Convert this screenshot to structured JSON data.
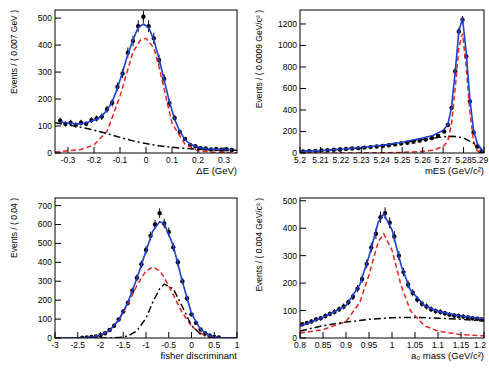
{
  "chart_data": [
    {
      "type": "scatter",
      "x_label": "ΔE (GeV)",
      "y_label": "Events / ( 0.007 GeV )",
      "xlim": [
        -0.35,
        0.35
      ],
      "xticks": [
        -0.3,
        -0.2,
        -0.1,
        0,
        0.1,
        0.2,
        0.3
      ],
      "ylim": [
        0,
        530
      ],
      "yticks": [
        0,
        100,
        200,
        300,
        400,
        500
      ],
      "grid": false,
      "series": [
        {
          "type": "scatter",
          "color": "#000000",
          "marker": "circle",
          "x": [
            -0.33,
            -0.31,
            -0.29,
            -0.27,
            -0.25,
            -0.23,
            -0.21,
            -0.19,
            -0.17,
            -0.15,
            -0.13,
            -0.11,
            -0.09,
            -0.07,
            -0.05,
            -0.03,
            -0.01,
            0.01,
            0.03,
            0.05,
            0.07,
            0.09,
            0.11,
            0.13,
            0.15,
            0.17,
            0.19,
            0.21,
            0.23,
            0.25,
            0.27,
            0.29,
            0.31,
            0.33
          ],
          "values": [
            120,
            108,
            112,
            104,
            112,
            108,
            122,
            128,
            135,
            162,
            186,
            245,
            295,
            372,
            415,
            470,
            505,
            470,
            425,
            345,
            275,
            185,
            130,
            78,
            52,
            30,
            25,
            18,
            17,
            13,
            15,
            12,
            14,
            11
          ],
          "errors": [
            11,
            10,
            11,
            10,
            11,
            10,
            11,
            11,
            12,
            13,
            14,
            16,
            17,
            19,
            20,
            22,
            22,
            22,
            21,
            19,
            17,
            14,
            11,
            9,
            7,
            5,
            5,
            4,
            4,
            4,
            4,
            3,
            4,
            3
          ]
        },
        {
          "type": "line",
          "color": "#e8251f",
          "line_style": "dashed",
          "x": [
            -0.35,
            -0.33,
            -0.25,
            -0.2,
            -0.15,
            -0.1,
            -0.05,
            -0.02,
            0,
            0.03,
            0.05,
            0.1,
            0.15,
            0.2,
            0.25,
            0.35
          ],
          "values": [
            4,
            5,
            13,
            30,
            80,
            210,
            375,
            420,
            425,
            390,
            320,
            110,
            33,
            8,
            3,
            1
          ]
        },
        {
          "type": "line",
          "color": "#000000",
          "line_style": "dashdot",
          "x": [
            -0.35,
            -0.3,
            -0.25,
            -0.2,
            -0.15,
            -0.1,
            -0.05,
            0,
            0.05,
            0.1,
            0.15,
            0.2,
            0.25,
            0.3,
            0.35
          ],
          "values": [
            112,
            104,
            95,
            85,
            72,
            58,
            45,
            35,
            27,
            21,
            17,
            14,
            12,
            11,
            10
          ]
        },
        {
          "type": "line",
          "color": "#1f3fd0",
          "line_style": "solid",
          "x": [
            -0.33,
            -0.31,
            -0.29,
            -0.27,
            -0.25,
            -0.23,
            -0.21,
            -0.19,
            -0.17,
            -0.15,
            -0.13,
            -0.11,
            -0.09,
            -0.07,
            -0.05,
            -0.03,
            -0.01,
            0.01,
            0.03,
            0.05,
            0.07,
            0.09,
            0.11,
            0.13,
            0.15,
            0.17,
            0.19,
            0.21,
            0.23,
            0.25,
            0.27,
            0.29,
            0.31,
            0.33
          ],
          "values": [
            115,
            112,
            110,
            108,
            108,
            112,
            118,
            125,
            138,
            158,
            190,
            240,
            300,
            365,
            420,
            465,
            478,
            465,
            420,
            350,
            270,
            190,
            125,
            80,
            50,
            33,
            24,
            19,
            16,
            15,
            14,
            13,
            13,
            12
          ]
        }
      ]
    },
    {
      "type": "scatter",
      "x_label": "mES (GeV/c²)",
      "y_label": "Events / ( 0.0009 GeV/c² )",
      "xlim": [
        5.2,
        5.29
      ],
      "xticks": [
        5.2,
        5.21,
        5.22,
        5.23,
        5.24,
        5.25,
        5.26,
        5.27,
        5.28,
        5.29
      ],
      "ylim": [
        0,
        1330
      ],
      "yticks": [
        0,
        200,
        400,
        600,
        800,
        1000,
        1200
      ],
      "grid": false,
      "series": [
        {
          "type": "scatter",
          "color": "#000000",
          "marker": "circle",
          "x": [
            5.2015,
            5.2045,
            5.2075,
            5.2105,
            5.2135,
            5.2165,
            5.2195,
            5.2225,
            5.2255,
            5.2285,
            5.2315,
            5.2345,
            5.2375,
            5.2405,
            5.2435,
            5.2465,
            5.2495,
            5.2525,
            5.2555,
            5.2585,
            5.2615,
            5.2645,
            5.2675,
            5.2705,
            5.2723,
            5.2741,
            5.2759,
            5.2777,
            5.2795,
            5.2813,
            5.2831,
            5.2849,
            5.2867,
            5.2885
          ],
          "values": [
            14,
            16,
            20,
            24,
            26,
            30,
            32,
            38,
            42,
            45,
            50,
            55,
            60,
            65,
            72,
            80,
            88,
            95,
            105,
            115,
            125,
            140,
            160,
            200,
            260,
            420,
            760,
            1130,
            1240,
            900,
            480,
            190,
            60,
            8
          ],
          "errors": [
            4,
            4,
            4,
            5,
            5,
            5,
            6,
            6,
            6,
            7,
            7,
            7,
            8,
            8,
            8,
            9,
            9,
            10,
            10,
            11,
            11,
            12,
            13,
            14,
            16,
            20,
            28,
            34,
            35,
            30,
            22,
            14,
            8,
            3
          ]
        },
        {
          "type": "line",
          "color": "#e8251f",
          "line_style": "dashed",
          "x": [
            5.2,
            5.21,
            5.22,
            5.23,
            5.24,
            5.25,
            5.26,
            5.265,
            5.27,
            5.2723,
            5.2741,
            5.2759,
            5.2777,
            5.2795,
            5.2813,
            5.2831,
            5.2849,
            5.2867,
            5.29
          ],
          "values": [
            0,
            0,
            0,
            1,
            2,
            5,
            15,
            25,
            60,
            110,
            270,
            600,
            980,
            1110,
            800,
            380,
            110,
            20,
            0
          ]
        },
        {
          "type": "line",
          "color": "#000000",
          "line_style": "dashdot",
          "x": [
            5.2,
            5.21,
            5.22,
            5.23,
            5.24,
            5.25,
            5.26,
            5.27,
            5.275,
            5.28,
            5.285,
            5.288,
            5.29
          ],
          "values": [
            12,
            22,
            35,
            50,
            70,
            95,
            125,
            150,
            156,
            140,
            90,
            50,
            0
          ]
        },
        {
          "type": "line",
          "color": "#1f3fd0",
          "line_style": "solid",
          "x": [
            5.2,
            5.21,
            5.22,
            5.23,
            5.24,
            5.25,
            5.26,
            5.265,
            5.27,
            5.2723,
            5.2741,
            5.2759,
            5.2777,
            5.2795,
            5.2813,
            5.2831,
            5.2849,
            5.2867,
            5.29
          ],
          "values": [
            12,
            22,
            35,
            51,
            72,
            100,
            140,
            163,
            210,
            263,
            425,
            756,
            1130,
            1255,
            935,
            500,
            210,
            90,
            0
          ]
        }
      ]
    },
    {
      "type": "scatter",
      "x_label": "fisher discriminant",
      "y_label": "Events / ( 0.04 )",
      "xlim": [
        -3,
        1
      ],
      "xticks": [
        -3,
        -2.5,
        -2,
        -1.5,
        -1,
        -0.5,
        0,
        0.5,
        1
      ],
      "ylim": [
        0,
        740
      ],
      "yticks": [
        0,
        100,
        200,
        300,
        400,
        500,
        600,
        700
      ],
      "grid": false,
      "series": [
        {
          "type": "scatter",
          "color": "#000000",
          "marker": "circle",
          "x": [
            -2.4,
            -2.3,
            -2.2,
            -2.1,
            -2.0,
            -1.9,
            -1.8,
            -1.7,
            -1.6,
            -1.5,
            -1.4,
            -1.3,
            -1.2,
            -1.1,
            -1.0,
            -0.9,
            -0.8,
            -0.7,
            -0.6,
            -0.5,
            -0.4,
            -0.3,
            -0.2,
            -0.1,
            0,
            0.1,
            0.2,
            0.3,
            0.4,
            0.5,
            0.6
          ],
          "values": [
            2,
            3,
            5,
            8,
            15,
            25,
            42,
            65,
            98,
            140,
            185,
            250,
            318,
            390,
            465,
            540,
            600,
            660,
            605,
            560,
            480,
            400,
            300,
            210,
            125,
            80,
            45,
            25,
            13,
            6,
            3
          ],
          "errors": [
            1,
            2,
            2,
            3,
            4,
            5,
            6,
            8,
            10,
            12,
            14,
            16,
            18,
            20,
            22,
            23,
            24,
            26,
            25,
            24,
            22,
            20,
            17,
            14,
            11,
            9,
            7,
            5,
            4,
            2,
            2
          ]
        },
        {
          "type": "line",
          "color": "#e8251f",
          "line_style": "dashed",
          "x": [
            -3,
            -2.5,
            -2.2,
            -2,
            -1.8,
            -1.6,
            -1.4,
            -1.2,
            -1,
            -0.85,
            -0.7,
            -0.6,
            -0.4,
            -0.2,
            0,
            0.2,
            0.4,
            0.6,
            1
          ],
          "values": [
            0,
            0.5,
            4,
            14,
            40,
            93,
            178,
            277,
            355,
            375,
            355,
            321,
            228,
            132,
            63,
            25,
            8,
            2,
            0
          ]
        },
        {
          "type": "line",
          "color": "#000000",
          "line_style": "dashdot",
          "x": [
            -3,
            -2.5,
            -2.2,
            -2,
            -1.8,
            -1.6,
            -1.4,
            -1.2,
            -1,
            -0.85,
            -0.7,
            -0.6,
            -0.4,
            -0.2,
            0,
            0.2,
            0.4,
            0.6,
            1
          ],
          "values": [
            0,
            0,
            0,
            0,
            0,
            2,
            10,
            38,
            105,
            190,
            260,
            285,
            260,
            165,
            66,
            20,
            4,
            1,
            0
          ]
        },
        {
          "type": "line",
          "color": "#1f3fd0",
          "line_style": "solid",
          "x": [
            -3,
            -2.5,
            -2.2,
            -2,
            -1.8,
            -1.6,
            -1.4,
            -1.2,
            -1,
            -0.85,
            -0.7,
            -0.6,
            -0.4,
            -0.2,
            0,
            0.2,
            0.4,
            0.6,
            1
          ],
          "values": [
            0,
            0.5,
            4,
            14,
            40,
            95,
            188,
            315,
            460,
            565,
            615,
            606,
            488,
            297,
            129,
            45,
            12,
            3,
            0
          ]
        }
      ]
    },
    {
      "type": "scatter",
      "x_label": "a₀ mass (GeV/c²)",
      "y_label": "Events / ( 0.004 GeV/c² )",
      "xlim": [
        0.8,
        1.2
      ],
      "xticks": [
        0.8,
        0.85,
        0.9,
        0.95,
        1,
        1.05,
        1.1,
        1.15,
        1.2
      ],
      "ylim": [
        0,
        510
      ],
      "yticks": [
        0,
        100,
        200,
        300,
        400,
        500
      ],
      "grid": false,
      "series": [
        {
          "type": "scatter",
          "color": "#000000",
          "marker": "circle",
          "x": [
            0.805,
            0.815,
            0.825,
            0.835,
            0.845,
            0.855,
            0.865,
            0.875,
            0.885,
            0.895,
            0.905,
            0.915,
            0.925,
            0.935,
            0.945,
            0.955,
            0.965,
            0.975,
            0.985,
            0.995,
            1.005,
            1.015,
            1.025,
            1.035,
            1.045,
            1.055,
            1.065,
            1.075,
            1.085,
            1.095,
            1.105,
            1.115,
            1.125,
            1.135,
            1.145,
            1.155,
            1.165,
            1.175,
            1.185,
            1.195
          ],
          "values": [
            50,
            55,
            60,
            68,
            72,
            80,
            88,
            95,
            105,
            115,
            130,
            150,
            180,
            215,
            270,
            330,
            380,
            440,
            455,
            420,
            370,
            300,
            240,
            195,
            165,
            140,
            125,
            115,
            105,
            98,
            95,
            90,
            85,
            82,
            80,
            78,
            75,
            72,
            70,
            68
          ],
          "errors": [
            7,
            7,
            8,
            8,
            8,
            9,
            9,
            10,
            10,
            11,
            11,
            12,
            13,
            15,
            16,
            18,
            19,
            21,
            21,
            20,
            19,
            17,
            15,
            14,
            13,
            12,
            11,
            11,
            10,
            10,
            10,
            9,
            9,
            9,
            9,
            9,
            9,
            8,
            8,
            8
          ]
        },
        {
          "type": "line",
          "color": "#e8251f",
          "line_style": "dashed",
          "x": [
            0.8,
            0.85,
            0.9,
            0.93,
            0.95,
            0.97,
            0.982,
            1.0,
            1.02,
            1.04,
            1.07,
            1.1,
            1.15,
            1.2
          ],
          "values": [
            18,
            30,
            60,
            130,
            230,
            350,
            380,
            320,
            190,
            100,
            45,
            25,
            12,
            8
          ]
        },
        {
          "type": "line",
          "color": "#000000",
          "line_style": "dashdot",
          "x": [
            0.8,
            0.85,
            0.9,
            0.95,
            1.0,
            1.05,
            1.1,
            1.15,
            1.2
          ],
          "values": [
            25,
            45,
            58,
            68,
            74,
            75,
            72,
            68,
            62
          ]
        },
        {
          "type": "line",
          "color": "#1f3fd0",
          "line_style": "solid",
          "x": [
            0.8,
            0.85,
            0.9,
            0.93,
            0.95,
            0.97,
            0.982,
            1.0,
            1.02,
            1.04,
            1.07,
            1.1,
            1.15,
            1.2
          ],
          "values": [
            43,
            75,
            118,
            194,
            298,
            421,
            452,
            394,
            264,
            175,
            119,
            97,
            80,
            70
          ]
        }
      ]
    }
  ]
}
